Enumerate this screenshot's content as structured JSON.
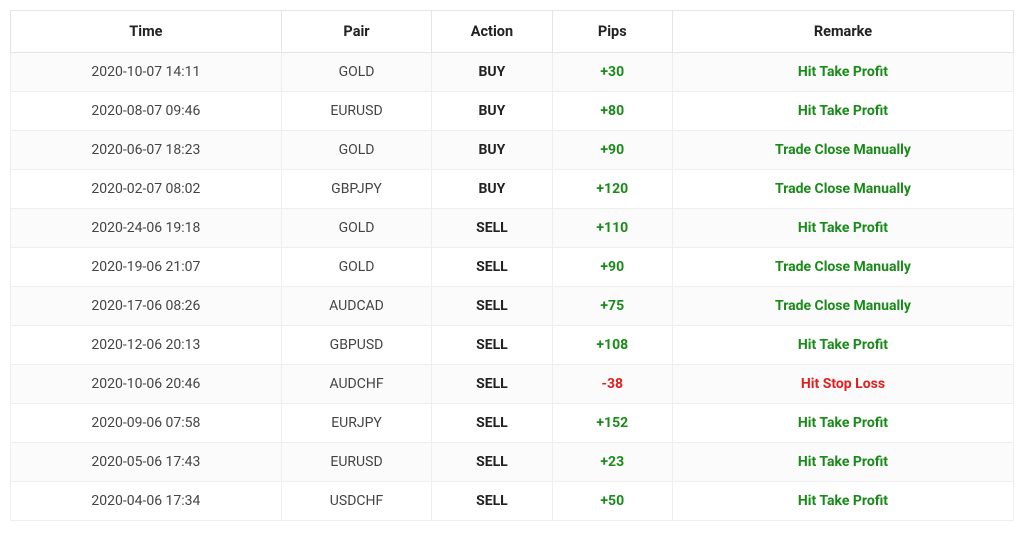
{
  "table": {
    "columns": [
      "Time",
      "Pair",
      "Action",
      "Pips",
      "Remarke"
    ],
    "rows": [
      {
        "time": "2020-10-07 14:11",
        "pair": "GOLD",
        "action": "BUY",
        "pips": "+30",
        "pipsClass": "green",
        "remark": "Hit Take Profit",
        "remarkClass": "green"
      },
      {
        "time": "2020-08-07 09:46",
        "pair": "EURUSD",
        "action": "BUY",
        "pips": "+80",
        "pipsClass": "green",
        "remark": "Hit Take Profit",
        "remarkClass": "green"
      },
      {
        "time": "2020-06-07 18:23",
        "pair": "GOLD",
        "action": "BUY",
        "pips": "+90",
        "pipsClass": "green",
        "remark": "Trade Close Manually",
        "remarkClass": "green"
      },
      {
        "time": "2020-02-07 08:02",
        "pair": "GBPJPY",
        "action": "BUY",
        "pips": "+120",
        "pipsClass": "green",
        "remark": "Trade Close Manually",
        "remarkClass": "green"
      },
      {
        "time": "2020-24-06 19:18",
        "pair": "GOLD",
        "action": "SELL",
        "pips": "+110",
        "pipsClass": "green",
        "remark": "Hit Take Profit",
        "remarkClass": "green"
      },
      {
        "time": "2020-19-06 21:07",
        "pair": "GOLD",
        "action": "SELL",
        "pips": "+90",
        "pipsClass": "green",
        "remark": "Trade Close Manually",
        "remarkClass": "green"
      },
      {
        "time": "2020-17-06 08:26",
        "pair": "AUDCAD",
        "action": "SELL",
        "pips": "+75",
        "pipsClass": "green",
        "remark": "Trade Close Manually",
        "remarkClass": "green"
      },
      {
        "time": "2020-12-06 20:13",
        "pair": "GBPUSD",
        "action": "SELL",
        "pips": "+108",
        "pipsClass": "green",
        "remark": "Hit Take Profit",
        "remarkClass": "green"
      },
      {
        "time": "2020-10-06 20:46",
        "pair": "AUDCHF",
        "action": "SELL",
        "pips": "-38",
        "pipsClass": "red",
        "remark": "Hit Stop Loss",
        "remarkClass": "red"
      },
      {
        "time": "2020-09-06 07:58",
        "pair": "EURJPY",
        "action": "SELL",
        "pips": "+152",
        "pipsClass": "green",
        "remark": "Hit Take Profit",
        "remarkClass": "green"
      },
      {
        "time": "2020-05-06 17:43",
        "pair": "EURUSD",
        "action": "SELL",
        "pips": "+23",
        "pipsClass": "green",
        "remark": "Hit Take Profit",
        "remarkClass": "green"
      },
      {
        "time": "2020-04-06 17:34",
        "pair": "USDCHF",
        "action": "SELL",
        "pips": "+50",
        "pipsClass": "green",
        "remark": "Hit Take Profit",
        "remarkClass": "green"
      }
    ],
    "styling": {
      "type": "table",
      "background_color": "#ffffff",
      "border_color": "#e5e5e5",
      "row_border_color": "#eeeeee",
      "odd_row_bg": "#fbfbfb",
      "header_fontsize": 14.5,
      "cell_fontsize": 14,
      "positive_color": "#1a8a1a",
      "negative_color": "#e02020",
      "text_color": "#444444",
      "header_text_color": "#222222",
      "column_widths": {
        "time": "27%",
        "pair": "15%",
        "action": "12%",
        "pips": "12%",
        "remarks": "34%"
      }
    }
  }
}
